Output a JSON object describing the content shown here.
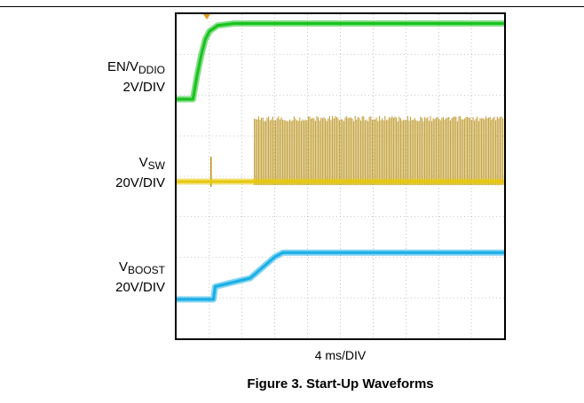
{
  "chart_data": {
    "type": "line",
    "title": "Figure 3. Start-Up Waveforms",
    "timebase": "4 ms/DIV",
    "xlabel": "4 ms/DIV",
    "xlim": [
      0,
      40
    ],
    "grid": true,
    "series": [
      {
        "name_main": "EN/V",
        "name_sub": "DDIO",
        "scale": "2V/DIV",
        "color": "#19c21f",
        "x": [
          0,
          2,
          2.5,
          3,
          3.5,
          4,
          5,
          7,
          40
        ],
        "y": [
          0,
          0,
          0.6,
          1.1,
          1.5,
          1.7,
          1.85,
          1.9,
          1.9
        ]
      },
      {
        "name_main": "V",
        "name_sub": "SW",
        "scale": "20V/DIV",
        "color": "#e8c80c",
        "color_switching": "#b89018",
        "x": [
          0,
          9.5,
          10,
          40
        ],
        "y": [
          0,
          0,
          0,
          0
        ],
        "switching_start": 9.5,
        "switching_amplitude_divs": 1.8
      },
      {
        "name_main": "V",
        "name_sub": "BOOST",
        "scale": "20V/DIV",
        "color": "#19aee6",
        "x": [
          0,
          4.5,
          4.7,
          9,
          12,
          13,
          40
        ],
        "y": [
          0,
          0,
          0.3,
          0.5,
          1.0,
          1.1,
          1.1
        ]
      }
    ]
  }
}
